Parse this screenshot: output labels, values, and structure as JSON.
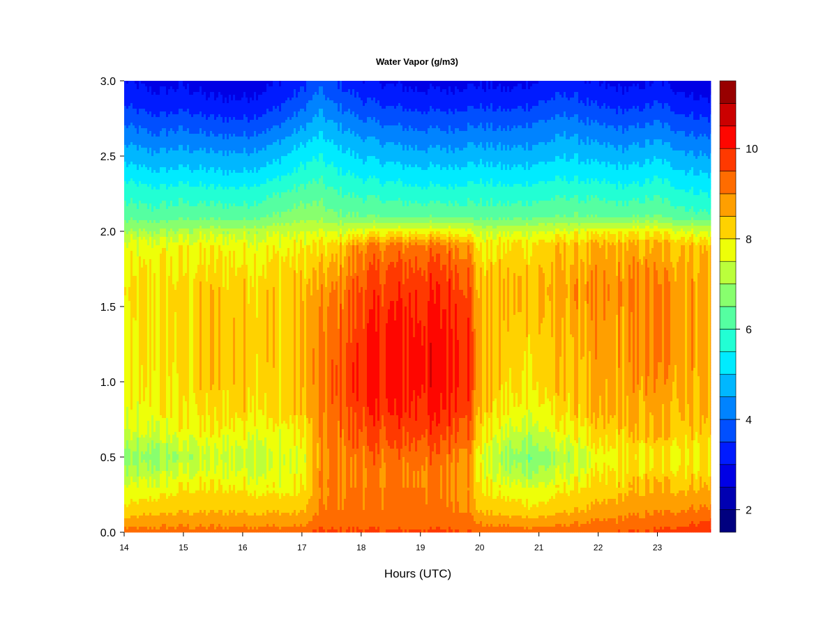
{
  "chart_data": {
    "type": "heatmap",
    "title": "Water Vapor (g/m3)",
    "xlabel": "Hours (UTC)",
    "ylabel": "",
    "xlim": [
      14,
      23.9
    ],
    "ylim": [
      0,
      3
    ],
    "x_ticks": [
      "14",
      "15",
      "16",
      "17",
      "18",
      "19",
      "20",
      "21",
      "22",
      "23"
    ],
    "y_ticks": [
      "0.0",
      "0.5",
      "1.0",
      "1.5",
      "2.0",
      "2.5",
      "3.0"
    ],
    "colorbar": {
      "range": [
        1.5,
        11.5
      ],
      "levels": [
        1.5,
        2.0,
        2.5,
        3.0,
        3.5,
        4.0,
        4.5,
        5.0,
        5.5,
        6.0,
        6.5,
        7.0,
        7.5,
        8.0,
        8.5,
        9.0,
        9.5,
        10.0,
        10.5,
        11.0,
        11.5
      ],
      "tick_values": [
        2,
        4,
        6,
        8,
        10
      ],
      "tick_labels": [
        "2",
        "4",
        "6",
        "8",
        "10"
      ],
      "colors": [
        "#00007f",
        "#0000b2",
        "#0000e5",
        "#001bff",
        "#004fff",
        "#0083ff",
        "#00b7ff",
        "#00ebff",
        "#22ffd4",
        "#55ffa1",
        "#88ff6e",
        "#bbff3b",
        "#eeff08",
        "#ffd200",
        "#ff9f00",
        "#ff6c00",
        "#ff3900",
        "#fe0600",
        "#cb0000",
        "#980000"
      ]
    },
    "value_description_note": null,
    "profiles": {
      "heights": [
        0.0,
        0.05,
        0.15,
        0.25,
        0.4,
        0.5,
        0.65,
        0.8,
        1.0,
        1.2,
        1.4,
        1.6,
        1.75,
        1.9,
        2.0,
        2.1,
        2.25,
        2.4,
        2.55,
        2.7,
        2.85,
        3.0
      ],
      "hours": [
        14.0,
        14.5,
        15.0,
        15.5,
        16.0,
        16.5,
        17.0,
        17.3,
        17.5,
        18.0,
        18.5,
        19.0,
        19.5,
        19.8,
        20.0,
        20.5,
        21.0,
        21.5,
        22.0,
        22.5,
        23.0,
        23.5,
        23.9
      ],
      "values": [
        [
          9.2,
          8.8,
          8.1,
          7.7,
          7.0,
          6.7,
          7.3,
          7.6,
          7.7,
          7.7,
          7.8,
          7.9,
          7.8,
          7.6,
          7.0,
          6.3,
          5.8,
          5.2,
          4.6,
          4.0,
          3.4,
          3.0
        ],
        [
          9.2,
          8.9,
          8.3,
          7.9,
          7.2,
          6.7,
          7.4,
          7.8,
          7.9,
          8.0,
          8.0,
          8.1,
          7.9,
          7.7,
          7.0,
          6.2,
          5.7,
          5.0,
          4.4,
          3.8,
          3.2,
          2.8
        ],
        [
          9.2,
          8.9,
          8.4,
          8.1,
          7.5,
          7.1,
          7.7,
          8.0,
          8.1,
          8.2,
          8.2,
          8.2,
          8.0,
          7.8,
          7.1,
          6.3,
          5.8,
          5.1,
          4.5,
          3.9,
          3.3,
          2.9
        ],
        [
          9.2,
          8.9,
          8.4,
          8.1,
          7.6,
          7.3,
          7.8,
          8.1,
          8.3,
          8.3,
          8.3,
          8.3,
          8.1,
          7.8,
          7.2,
          6.3,
          5.7,
          5.0,
          4.4,
          3.7,
          3.1,
          2.7
        ],
        [
          9.3,
          8.9,
          8.4,
          8.1,
          7.6,
          7.4,
          7.8,
          8.2,
          8.4,
          8.4,
          8.4,
          8.3,
          8.1,
          7.8,
          7.2,
          6.3,
          5.7,
          5.0,
          4.4,
          3.7,
          3.1,
          2.7
        ],
        [
          9.3,
          8.9,
          8.4,
          8.0,
          7.5,
          7.4,
          7.7,
          8.1,
          8.2,
          8.3,
          8.3,
          8.3,
          8.1,
          7.8,
          7.3,
          6.5,
          5.9,
          5.2,
          4.6,
          3.9,
          3.3,
          2.9
        ],
        [
          9.3,
          8.9,
          8.4,
          8.0,
          7.7,
          7.6,
          7.9,
          8.3,
          8.4,
          8.4,
          8.4,
          8.4,
          8.2,
          7.9,
          7.4,
          6.8,
          6.2,
          5.6,
          5.1,
          4.4,
          3.8,
          3.3
        ],
        [
          9.6,
          9.3,
          9.0,
          8.9,
          8.8,
          8.7,
          8.8,
          8.9,
          9.0,
          9.0,
          8.9,
          8.7,
          8.4,
          8.0,
          7.5,
          6.8,
          6.3,
          5.8,
          5.3,
          4.8,
          4.3,
          3.8
        ],
        [
          9.6,
          9.3,
          9.1,
          9.0,
          9.0,
          9.0,
          9.1,
          9.2,
          9.3,
          9.2,
          9.1,
          8.9,
          8.5,
          8.1,
          7.4,
          6.6,
          6.1,
          5.6,
          5.1,
          4.6,
          4.0,
          3.5
        ],
        [
          9.6,
          9.3,
          9.1,
          9.1,
          9.1,
          9.2,
          9.5,
          9.8,
          10.0,
          9.9,
          9.8,
          9.6,
          9.3,
          9.0,
          7.7,
          6.5,
          5.9,
          5.3,
          4.8,
          4.2,
          3.6,
          3.1
        ],
        [
          9.6,
          9.3,
          9.1,
          9.1,
          9.1,
          9.2,
          9.6,
          9.9,
          10.1,
          10.1,
          10.0,
          9.8,
          9.5,
          9.1,
          7.8,
          6.4,
          5.8,
          5.2,
          4.6,
          4.0,
          3.4,
          2.9
        ],
        [
          9.6,
          9.3,
          9.1,
          9.1,
          9.1,
          9.3,
          9.7,
          10.0,
          10.2,
          10.2,
          10.1,
          9.9,
          9.6,
          9.2,
          7.8,
          6.4,
          5.7,
          5.1,
          4.5,
          3.9,
          3.3,
          2.8
        ],
        [
          9.6,
          9.3,
          9.1,
          9.0,
          9.0,
          9.2,
          9.6,
          10.0,
          10.2,
          10.2,
          10.1,
          9.9,
          9.6,
          9.1,
          7.8,
          6.4,
          5.7,
          5.1,
          4.5,
          3.9,
          3.3,
          2.8
        ],
        [
          9.6,
          9.3,
          9.0,
          9.0,
          8.9,
          9.1,
          9.5,
          9.8,
          10.0,
          10.0,
          9.9,
          9.7,
          9.4,
          9.0,
          7.7,
          6.4,
          5.8,
          5.2,
          4.6,
          4.0,
          3.4,
          2.9
        ],
        [
          9.3,
          9.0,
          8.4,
          8.1,
          7.8,
          7.7,
          8.1,
          8.4,
          8.5,
          8.5,
          8.5,
          8.4,
          8.2,
          7.9,
          7.3,
          6.3,
          5.8,
          5.2,
          4.6,
          4.0,
          3.4,
          2.9
        ],
        [
          9.3,
          8.9,
          8.2,
          7.9,
          7.1,
          6.8,
          7.3,
          7.8,
          8.1,
          8.2,
          8.3,
          8.4,
          8.3,
          8.1,
          7.4,
          6.3,
          5.7,
          5.1,
          4.5,
          3.9,
          3.3,
          2.8
        ],
        [
          9.3,
          8.9,
          8.1,
          7.8,
          7.0,
          6.7,
          7.3,
          7.8,
          8.1,
          8.3,
          8.4,
          8.5,
          8.4,
          8.2,
          7.5,
          6.4,
          5.8,
          5.2,
          4.6,
          4.1,
          3.5,
          3.0
        ],
        [
          9.4,
          9.0,
          8.4,
          8.1,
          7.5,
          7.2,
          7.8,
          8.2,
          8.4,
          8.5,
          8.6,
          8.7,
          8.6,
          8.4,
          7.6,
          6.5,
          5.9,
          5.3,
          4.8,
          4.3,
          3.7,
          3.2
        ],
        [
          9.4,
          9.1,
          8.6,
          8.3,
          7.8,
          7.6,
          8.1,
          8.4,
          8.6,
          8.7,
          8.7,
          8.8,
          8.7,
          8.5,
          7.7,
          6.4,
          5.8,
          5.2,
          4.6,
          4.0,
          3.4,
          2.9
        ],
        [
          9.5,
          9.2,
          8.8,
          8.5,
          8.1,
          7.9,
          8.3,
          8.6,
          8.7,
          8.8,
          8.8,
          8.9,
          8.8,
          8.6,
          7.8,
          6.4,
          5.7,
          5.1,
          4.5,
          3.9,
          3.3,
          2.8
        ],
        [
          9.6,
          9.3,
          8.9,
          8.6,
          8.2,
          8.0,
          8.4,
          8.7,
          8.8,
          8.9,
          8.9,
          8.9,
          8.8,
          8.6,
          7.8,
          6.5,
          5.9,
          5.3,
          4.7,
          4.1,
          3.5,
          3.0
        ],
        [
          9.8,
          9.5,
          9.0,
          8.6,
          8.2,
          8.0,
          8.3,
          8.6,
          8.7,
          8.8,
          8.8,
          8.8,
          8.7,
          8.5,
          7.6,
          6.2,
          5.6,
          5.0,
          4.4,
          3.8,
          3.2,
          2.7
        ],
        [
          10.0,
          9.7,
          9.1,
          8.7,
          8.2,
          8.0,
          8.3,
          8.5,
          8.6,
          8.7,
          8.7,
          8.7,
          8.6,
          8.4,
          7.5,
          6.1,
          5.5,
          4.9,
          4.3,
          3.7,
          3.1,
          2.6
        ]
      ]
    }
  }
}
